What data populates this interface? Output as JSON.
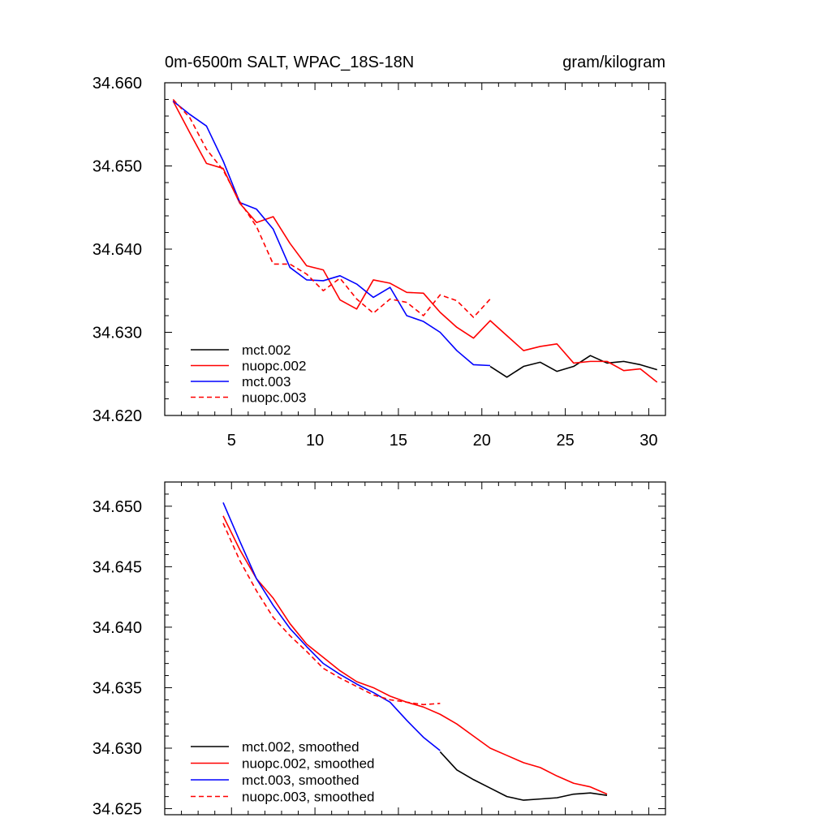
{
  "chart_data": [
    {
      "type": "line",
      "title_left": "0m-6500m SALT, WPAC_18S-18N",
      "title_right": "gram/kilogram",
      "xlabel": "",
      "ylabel": "",
      "xlim": [
        1,
        31
      ],
      "ylim": [
        34.62,
        34.66
      ],
      "xticks": [
        5,
        10,
        15,
        20,
        25,
        30
      ],
      "xtick_labels": [
        "5",
        "10",
        "15",
        "20",
        "25",
        "30"
      ],
      "yticks": [
        34.62,
        34.63,
        34.64,
        34.65,
        34.66
      ],
      "ytick_labels": [
        "34.620",
        "34.630",
        "34.640",
        "34.650",
        "34.660"
      ],
      "legend_position": "bottom-left",
      "series": [
        {
          "name": "mct.002",
          "color": "#000000",
          "dash": "solid",
          "x": [
            20.5,
            21.5,
            22.5,
            23.5,
            24.5,
            25.5,
            26.5,
            27.5,
            28.5,
            29.5,
            30.5
          ],
          "y": [
            34.6259,
            34.6246,
            34.6259,
            34.6264,
            34.6253,
            34.6259,
            34.6272,
            34.6263,
            34.6265,
            34.6261,
            34.6255
          ]
        },
        {
          "name": "nuopc.002",
          "color": "#ff0000",
          "dash": "solid",
          "x": [
            1.5,
            2.5,
            3.5,
            4.5,
            5.5,
            6.5,
            7.5,
            8.5,
            9.5,
            10.5,
            11.5,
            12.5,
            13.5,
            14.5,
            15.5,
            16.5,
            17.5,
            18.5,
            19.5,
            20.5,
            21.5,
            22.5,
            23.5,
            24.5,
            25.5,
            26.5,
            27.5,
            28.5,
            29.5,
            30.5
          ],
          "y": [
            34.6578,
            34.654,
            34.6503,
            34.6497,
            34.6455,
            34.6432,
            34.6439,
            34.6407,
            34.638,
            34.6375,
            34.6339,
            34.6328,
            34.6363,
            34.6359,
            34.6348,
            34.6347,
            34.6324,
            34.6306,
            34.6293,
            34.6314,
            34.6296,
            34.6278,
            34.6283,
            34.6286,
            34.6263,
            34.6265,
            34.6265,
            34.6254,
            34.6256,
            34.624
          ]
        },
        {
          "name": "mct.003",
          "color": "#0000ff",
          "dash": "solid",
          "x": [
            1.5,
            2.5,
            3.5,
            4.5,
            5.5,
            6.5,
            7.5,
            8.5,
            9.5,
            10.5,
            11.5,
            12.5,
            13.5,
            14.5,
            15.5,
            16.5,
            17.5,
            18.5,
            19.5,
            20.5
          ],
          "y": [
            34.6578,
            34.6562,
            34.6548,
            34.6506,
            34.6456,
            34.6448,
            34.6424,
            34.6378,
            34.6363,
            34.6362,
            34.6368,
            34.6358,
            34.6342,
            34.6354,
            34.632,
            34.6313,
            34.63,
            34.6278,
            34.6261,
            34.626
          ]
        },
        {
          "name": "nuopc.003",
          "color": "#ff0000",
          "dash": "dashed",
          "x": [
            1.5,
            2.5,
            3.5,
            4.5,
            5.5,
            6.5,
            7.5,
            8.5,
            9.5,
            10.5,
            11.5,
            12.5,
            13.5,
            14.5,
            15.5,
            16.5,
            17.5,
            18.5,
            19.5,
            20.5
          ],
          "y": [
            34.658,
            34.6558,
            34.652,
            34.6495,
            34.6457,
            34.6427,
            34.6382,
            34.6382,
            34.637,
            34.635,
            34.6365,
            34.634,
            34.6323,
            34.634,
            34.6336,
            34.632,
            34.6345,
            34.6338,
            34.6318,
            34.634
          ]
        }
      ]
    },
    {
      "type": "line",
      "title_left": "",
      "title_right": "",
      "xlabel": "",
      "ylabel": "",
      "xlim": [
        1,
        31
      ],
      "ylim": [
        34.6245,
        34.652
      ],
      "xticks": [
        5,
        10,
        15,
        20,
        25,
        30
      ],
      "xtick_labels": [],
      "yticks": [
        34.625,
        34.63,
        34.635,
        34.64,
        34.645,
        34.65
      ],
      "ytick_labels": [
        "34.625",
        "34.630",
        "34.635",
        "34.640",
        "34.645",
        "34.650"
      ],
      "legend_position": "bottom-left",
      "series": [
        {
          "name": "mct.002, smoothed",
          "color": "#000000",
          "dash": "solid",
          "x": [
            17.5,
            18.5,
            19.5,
            20.5,
            21.5,
            22.5,
            23.5,
            24.5,
            25.5,
            26.5,
            27.5
          ],
          "y": [
            34.6297,
            34.6282,
            34.6274,
            34.6267,
            34.626,
            34.6257,
            34.6258,
            34.6259,
            34.6262,
            34.6263,
            34.6261
          ]
        },
        {
          "name": "nuopc.002, smoothed",
          "color": "#ff0000",
          "dash": "solid",
          "x": [
            4.5,
            5.5,
            6.5,
            7.5,
            8.5,
            9.5,
            10.5,
            11.5,
            12.5,
            13.5,
            14.5,
            15.5,
            16.5,
            17.5,
            18.5,
            19.5,
            20.5,
            21.5,
            22.5,
            23.5,
            24.5,
            25.5,
            26.5,
            27.5
          ],
          "y": [
            34.6492,
            34.6464,
            34.644,
            34.6424,
            34.6403,
            34.6386,
            34.6375,
            34.6364,
            34.6355,
            34.635,
            34.6343,
            34.6338,
            34.6334,
            34.6328,
            34.632,
            34.631,
            34.63,
            34.6294,
            34.6288,
            34.6284,
            34.6277,
            34.6271,
            34.6268,
            34.6262
          ]
        },
        {
          "name": "mct.003, smoothed",
          "color": "#0000ff",
          "dash": "solid",
          "x": [
            4.5,
            5.5,
            6.5,
            7.5,
            8.5,
            9.5,
            10.5,
            11.5,
            12.5,
            13.5,
            14.5,
            15.5,
            16.5,
            17.5
          ],
          "y": [
            34.6503,
            34.6471,
            34.644,
            34.6418,
            34.6399,
            34.6384,
            34.637,
            34.6361,
            34.6353,
            34.6346,
            34.6338,
            34.6323,
            34.6309,
            34.6298
          ]
        },
        {
          "name": "nuopc.003, smoothed",
          "color": "#ff0000",
          "dash": "dashed",
          "x": [
            4.5,
            5.5,
            6.5,
            7.5,
            8.5,
            9.5,
            10.5,
            11.5,
            12.5,
            13.5,
            14.5,
            15.5,
            16.5,
            17.5
          ],
          "y": [
            34.6486,
            34.6455,
            34.643,
            34.6408,
            34.6393,
            34.638,
            34.6366,
            34.6358,
            34.6351,
            34.6344,
            34.634,
            34.6338,
            34.6336,
            34.6337
          ]
        }
      ]
    }
  ]
}
